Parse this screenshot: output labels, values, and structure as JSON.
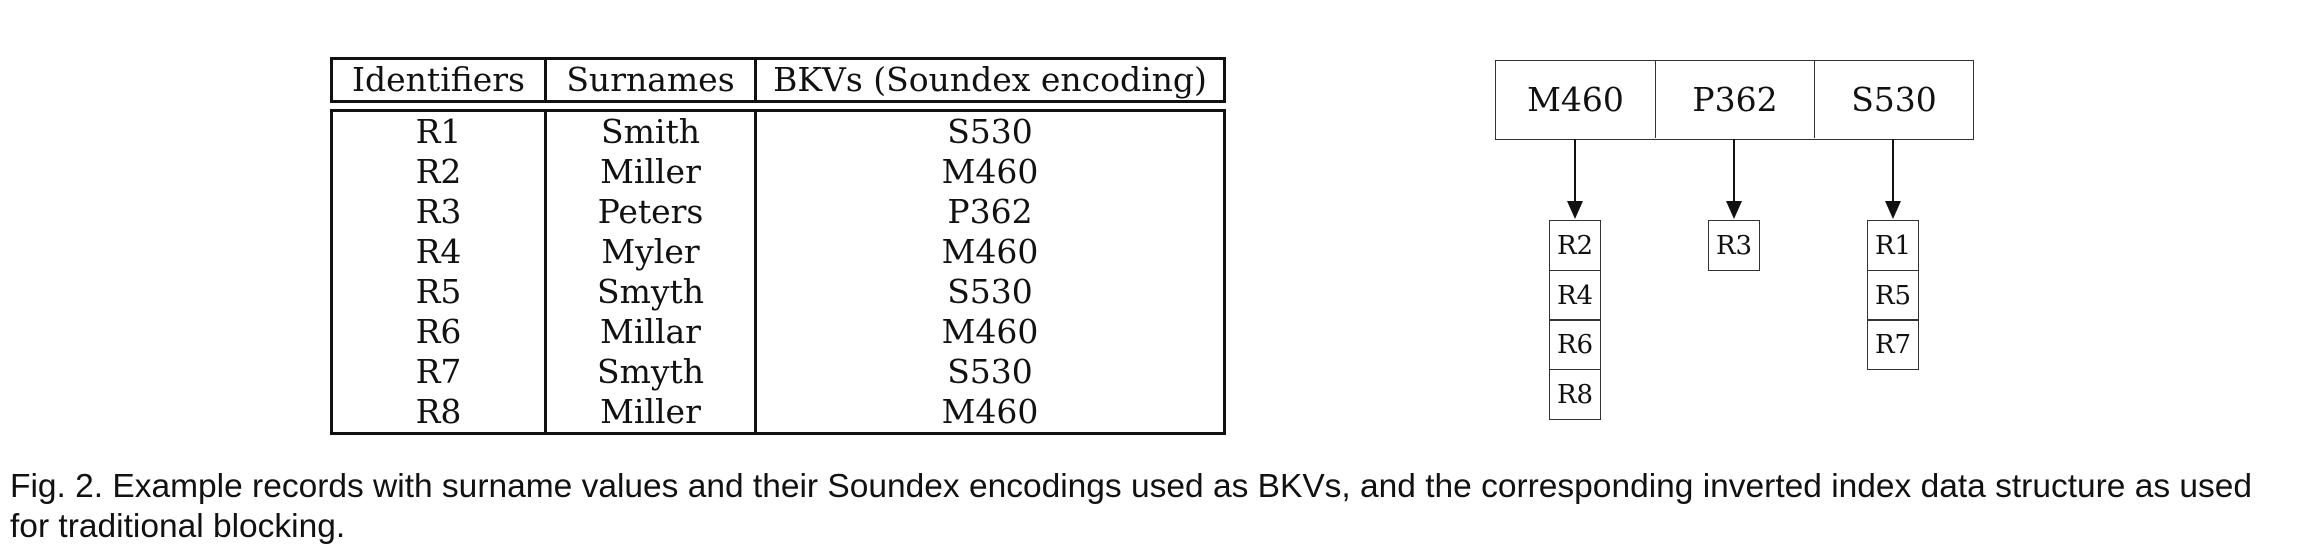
{
  "records_table": {
    "headers": [
      "Identifiers",
      "Surnames",
      "BKVs (Soundex encoding)"
    ],
    "rows": [
      {
        "id": "R1",
        "surname": "Smith",
        "bkv": "S530"
      },
      {
        "id": "R2",
        "surname": "Miller",
        "bkv": "M460"
      },
      {
        "id": "R3",
        "surname": "Peters",
        "bkv": "P362"
      },
      {
        "id": "R4",
        "surname": "Myler",
        "bkv": "M460"
      },
      {
        "id": "R5",
        "surname": "Smyth",
        "bkv": "S530"
      },
      {
        "id": "R6",
        "surname": "Millar",
        "bkv": "M460"
      },
      {
        "id": "R7",
        "surname": "Smyth",
        "bkv": "S530"
      },
      {
        "id": "R8",
        "surname": "Miller",
        "bkv": "M460"
      }
    ]
  },
  "inverted_index": {
    "keys": [
      {
        "key": "M460",
        "records": [
          "R2",
          "R4",
          "R6",
          "R8"
        ]
      },
      {
        "key": "P362",
        "records": [
          "R3"
        ]
      },
      {
        "key": "S530",
        "records": [
          "R1",
          "R5",
          "R7"
        ]
      }
    ]
  },
  "caption": "Fig. 2. Example records with surname values and their Soundex encodings used as BKVs, and the corresponding inverted index data structure as used for traditional blocking."
}
